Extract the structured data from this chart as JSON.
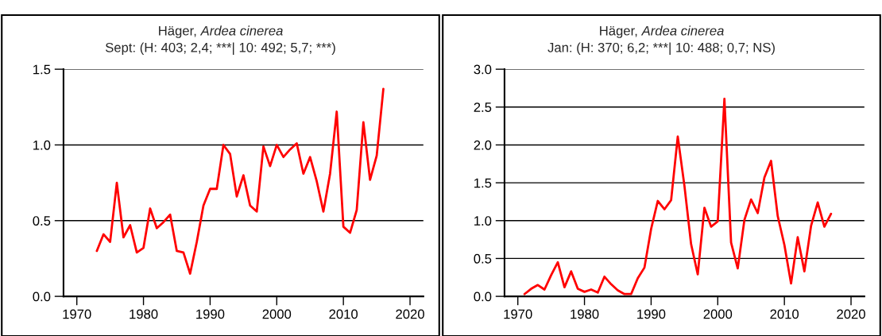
{
  "chart_data": [
    {
      "type": "line",
      "title": "Häger, Ardea cinerea",
      "subtitle": "Sept: (H: 403; 2,4; ***| 10: 492; 5,7; ***)",
      "x": [
        1973,
        1974,
        1975,
        1976,
        1977,
        1978,
        1979,
        1980,
        1981,
        1982,
        1983,
        1984,
        1985,
        1986,
        1987,
        1988,
        1989,
        1990,
        1991,
        1992,
        1993,
        1994,
        1995,
        1996,
        1997,
        1998,
        1999,
        2000,
        2001,
        2002,
        2003,
        2004,
        2005,
        2006,
        2007,
        2008,
        2009,
        2010,
        2011,
        2012,
        2013,
        2014,
        2015,
        2016
      ],
      "series": [
        {
          "color": "#ff0000",
          "values": [
            0.3,
            0.41,
            0.36,
            0.75,
            0.39,
            0.47,
            0.29,
            0.32,
            0.58,
            0.45,
            0.49,
            0.54,
            0.3,
            0.29,
            0.15,
            0.36,
            0.6,
            0.71,
            0.71,
            1.0,
            0.94,
            0.66,
            0.8,
            0.6,
            0.56,
            0.99,
            0.86,
            1.0,
            0.92,
            0.97,
            1.01,
            0.81,
            0.92,
            0.76,
            0.56,
            0.81,
            1.22,
            0.46,
            0.42,
            0.57,
            1.15,
            0.77,
            0.93,
            1.37
          ]
        }
      ],
      "xlim": [
        1968,
        2022
      ],
      "xticks": [
        1970,
        1980,
        1990,
        2000,
        2010,
        2020
      ],
      "ylim": [
        0,
        1.5
      ],
      "yticks": [
        {
          "value": 0,
          "label": "0.0"
        },
        {
          "value": 0.5,
          "label": "0.5"
        },
        {
          "value": 1,
          "label": "1.0"
        },
        {
          "value": 1.5,
          "label": "1.5"
        }
      ],
      "grid": "y",
      "legend": false,
      "marker": "none",
      "line_style": "solid"
    },
    {
      "type": "line",
      "title": "Häger, Ardea cinerea",
      "subtitle": "Jan: (H: 370; 6,2; ***| 10: 488; 0,7; NS)",
      "x": [
        1971,
        1972,
        1973,
        1974,
        1975,
        1976,
        1977,
        1978,
        1979,
        1980,
        1981,
        1982,
        1983,
        1984,
        1985,
        1986,
        1987,
        1988,
        1989,
        1990,
        1991,
        1992,
        1993,
        1994,
        1995,
        1996,
        1997,
        1998,
        1999,
        2000,
        2001,
        2002,
        2003,
        2004,
        2005,
        2006,
        2007,
        2008,
        2009,
        2010,
        2011,
        2012,
        2013,
        2014,
        2015,
        2016,
        2017
      ],
      "series": [
        {
          "color": "#ff0000",
          "values": [
            0.03,
            0.1,
            0.15,
            0.09,
            0.28,
            0.45,
            0.12,
            0.33,
            0.1,
            0.06,
            0.09,
            0.05,
            0.26,
            0.16,
            0.08,
            0.03,
            0.03,
            0.24,
            0.38,
            0.89,
            1.26,
            1.15,
            1.27,
            2.11,
            1.46,
            0.69,
            0.29,
            1.17,
            0.92,
            0.99,
            2.61,
            0.71,
            0.37,
            1.01,
            1.28,
            1.1,
            1.57,
            1.79,
            1.06,
            0.68,
            0.17,
            0.78,
            0.33,
            0.93,
            1.24,
            0.92,
            1.09
          ]
        }
      ],
      "xlim": [
        1968,
        2022
      ],
      "xticks": [
        1970,
        1980,
        1990,
        2000,
        2010,
        2020
      ],
      "ylim": [
        0,
        3
      ],
      "yticks": [
        {
          "value": 0,
          "label": "0.0"
        },
        {
          "value": 0.5,
          "label": "0.5"
        },
        {
          "value": 1,
          "label": "1.0"
        },
        {
          "value": 1.5,
          "label": "1.5"
        },
        {
          "value": 2,
          "label": "2.0"
        },
        {
          "value": 2.5,
          "label": "2.5"
        },
        {
          "value": 3,
          "label": "3.0"
        }
      ],
      "grid": "y",
      "legend": false,
      "marker": "none",
      "line_style": "solid"
    }
  ]
}
